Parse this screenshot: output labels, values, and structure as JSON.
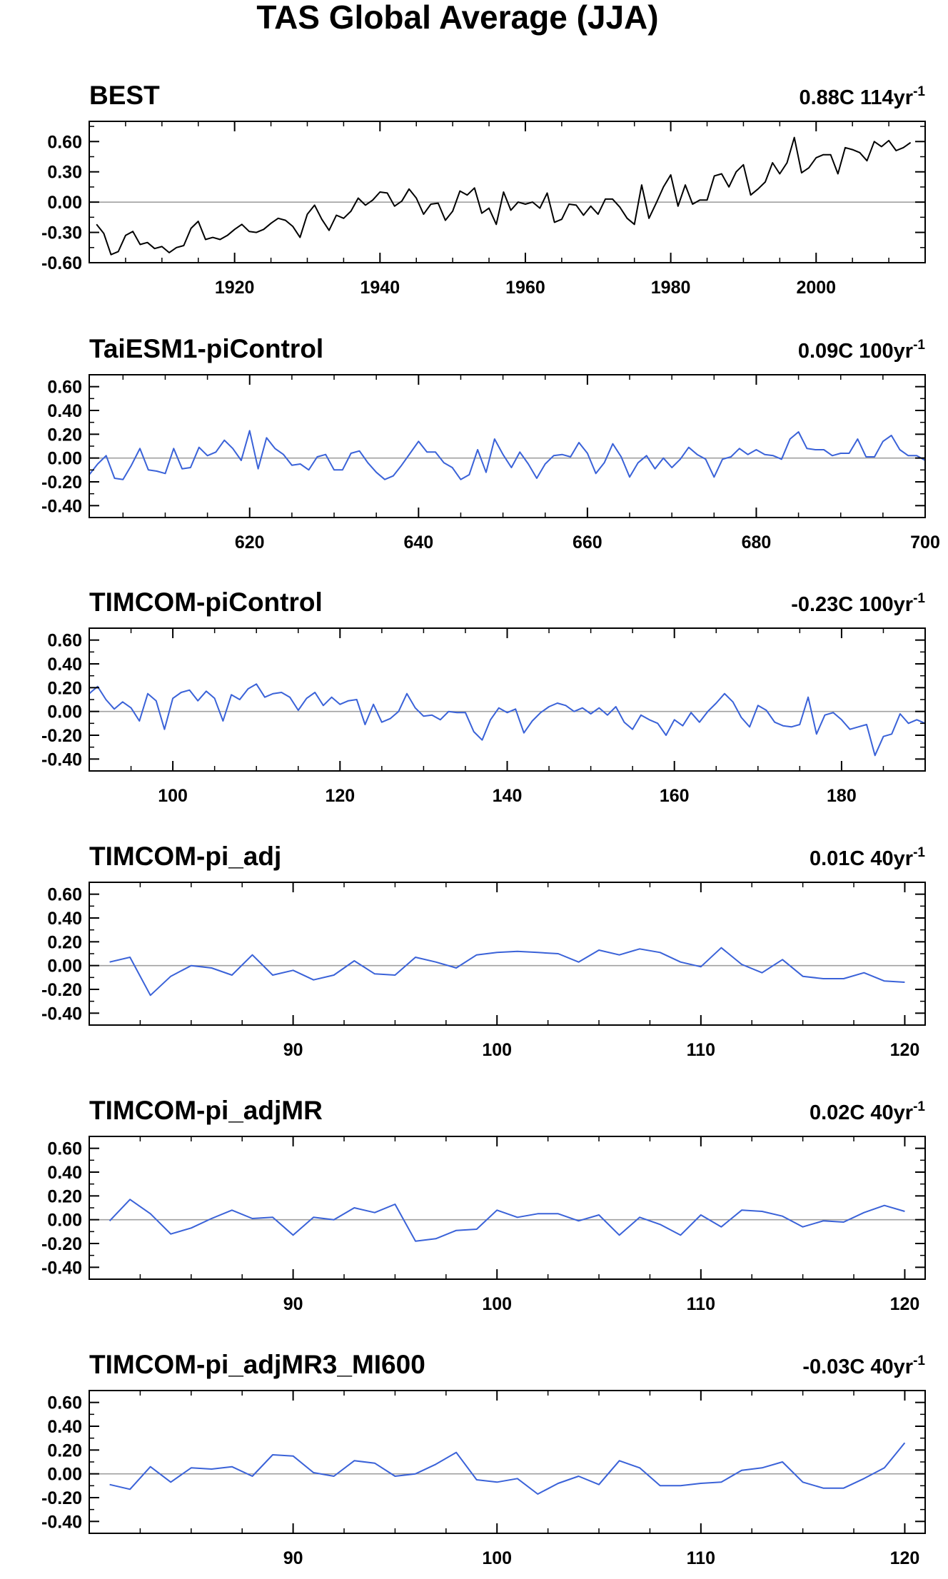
{
  "figure": {
    "title": "TAS Global Average (JJA)"
  },
  "colors": {
    "observed": "#000000",
    "model": "#3a62d8",
    "zero_line": "#a0a0a0",
    "frame": "#000000"
  },
  "chart_data": [
    {
      "type": "line",
      "title": "BEST",
      "trend_value": "0.88C 114yr",
      "trend_unit_exp": "-1",
      "series_color": "observed",
      "xlim": [
        1900,
        2015
      ],
      "ylim": [
        -0.6,
        0.8
      ],
      "yticks": [
        -0.6,
        -0.3,
        0.0,
        0.3,
        0.6
      ],
      "ytick_labels": [
        "-0.60",
        "-0.30",
        "0.00",
        "0.30",
        "0.60"
      ],
      "xticks": [
        1920,
        1940,
        1960,
        1980,
        2000
      ],
      "xtick_labels": [
        "1920",
        "1940",
        "1960",
        "1980",
        "2000"
      ],
      "x_start": 1901,
      "x_step": 1,
      "y": [
        -0.22,
        -0.31,
        -0.52,
        -0.49,
        -0.33,
        -0.29,
        -0.42,
        -0.4,
        -0.46,
        -0.44,
        -0.5,
        -0.45,
        -0.43,
        -0.26,
        -0.19,
        -0.37,
        -0.35,
        -0.37,
        -0.33,
        -0.27,
        -0.22,
        -0.29,
        -0.3,
        -0.27,
        -0.21,
        -0.16,
        -0.18,
        -0.24,
        -0.35,
        -0.12,
        -0.03,
        -0.17,
        -0.28,
        -0.13,
        -0.16,
        -0.09,
        0.04,
        -0.03,
        0.02,
        0.1,
        0.09,
        -0.04,
        0.01,
        0.13,
        0.04,
        -0.12,
        -0.02,
        -0.01,
        -0.18,
        -0.09,
        0.11,
        0.07,
        0.14,
        -0.11,
        -0.06,
        -0.22,
        0.1,
        -0.08,
        0.0,
        -0.02,
        0.0,
        -0.06,
        0.09,
        -0.2,
        -0.17,
        -0.02,
        -0.03,
        -0.13,
        -0.04,
        -0.12,
        0.03,
        0.03,
        -0.05,
        -0.16,
        -0.22,
        0.17,
        -0.16,
        -0.01,
        0.15,
        0.27,
        -0.04,
        0.17,
        -0.02,
        0.02,
        0.02,
        0.26,
        0.28,
        0.15,
        0.3,
        0.37,
        0.07,
        0.13,
        0.2,
        0.39,
        0.28,
        0.39,
        0.64,
        0.29,
        0.34,
        0.44,
        0.47,
        0.47,
        0.28,
        0.54,
        0.52,
        0.49,
        0.41,
        0.6,
        0.55,
        0.61,
        0.51,
        0.54,
        0.59
      ]
    },
    {
      "type": "line",
      "title": "TaiESM1-piControl",
      "trend_value": "0.09C 100yr",
      "trend_unit_exp": "-1",
      "series_color": "model",
      "xlim": [
        601,
        700
      ],
      "ylim": [
        -0.5,
        0.7
      ],
      "yticks": [
        -0.4,
        -0.2,
        0.0,
        0.2,
        0.4,
        0.6
      ],
      "ytick_labels": [
        "-0.40",
        "-0.20",
        "0.00",
        "0.20",
        "0.40",
        "0.60"
      ],
      "xticks": [
        620,
        640,
        660,
        680,
        700
      ],
      "xtick_labels": [
        "620",
        "640",
        "660",
        "680",
        "700"
      ],
      "x_start": 601,
      "x_step": 1,
      "y": [
        -0.14,
        -0.05,
        0.02,
        -0.17,
        -0.18,
        -0.06,
        0.08,
        -0.1,
        -0.11,
        -0.13,
        0.08,
        -0.09,
        -0.08,
        0.09,
        0.02,
        0.05,
        0.15,
        0.08,
        -0.02,
        0.23,
        -0.09,
        0.17,
        0.08,
        0.03,
        -0.06,
        -0.05,
        -0.1,
        0.01,
        0.03,
        -0.1,
        -0.1,
        0.04,
        0.06,
        -0.04,
        -0.12,
        -0.18,
        -0.15,
        -0.06,
        0.04,
        0.14,
        0.05,
        0.05,
        -0.04,
        -0.08,
        -0.18,
        -0.14,
        0.07,
        -0.12,
        0.16,
        0.03,
        -0.08,
        0.05,
        -0.05,
        -0.17,
        -0.05,
        0.02,
        0.03,
        0.01,
        0.13,
        0.04,
        -0.13,
        -0.04,
        0.12,
        0.01,
        -0.16,
        -0.04,
        0.02,
        -0.09,
        0.0,
        -0.08,
        -0.01,
        0.09,
        0.03,
        -0.01,
        -0.16,
        -0.01,
        0.01,
        0.08,
        0.03,
        0.07,
        0.03,
        0.02,
        -0.01,
        0.16,
        0.22,
        0.08,
        0.07,
        0.07,
        0.02,
        0.04,
        0.04,
        0.16,
        0.01,
        0.01,
        0.14,
        0.19,
        0.07,
        0.02,
        0.02,
        -0.02
      ]
    },
    {
      "type": "line",
      "title": "TIMCOM-piControl",
      "trend_value": "-0.23C 100yr",
      "trend_unit_exp": "-1",
      "series_color": "model",
      "xlim": [
        90,
        190
      ],
      "ylim": [
        -0.5,
        0.7
      ],
      "yticks": [
        -0.4,
        -0.2,
        0.0,
        0.2,
        0.4,
        0.6
      ],
      "ytick_labels": [
        "-0.40",
        "-0.20",
        "0.00",
        "0.20",
        "0.40",
        "0.60"
      ],
      "xticks": [
        100,
        120,
        140,
        160,
        180
      ],
      "xtick_labels": [
        "100",
        "120",
        "140",
        "160",
        "180"
      ],
      "x_start": 90,
      "x_step": 1,
      "y": [
        0.15,
        0.21,
        0.1,
        0.02,
        0.08,
        0.03,
        -0.08,
        0.15,
        0.09,
        -0.15,
        0.11,
        0.16,
        0.18,
        0.09,
        0.17,
        0.11,
        -0.08,
        0.14,
        0.1,
        0.19,
        0.23,
        0.12,
        0.15,
        0.16,
        0.12,
        0.01,
        0.11,
        0.16,
        0.05,
        0.12,
        0.06,
        0.09,
        0.1,
        -0.11,
        0.06,
        -0.09,
        -0.06,
        0.0,
        0.15,
        0.03,
        -0.04,
        -0.03,
        -0.07,
        0.0,
        -0.01,
        -0.01,
        -0.17,
        -0.24,
        -0.07,
        0.03,
        -0.01,
        0.02,
        -0.18,
        -0.08,
        -0.01,
        0.04,
        0.07,
        0.05,
        0.0,
        0.03,
        -0.02,
        0.03,
        -0.03,
        0.04,
        -0.09,
        -0.15,
        -0.03,
        -0.07,
        -0.1,
        -0.2,
        -0.07,
        -0.12,
        -0.01,
        -0.09,
        0.0,
        0.07,
        0.15,
        0.08,
        -0.05,
        -0.13,
        0.05,
        0.01,
        -0.09,
        -0.12,
        -0.13,
        -0.11,
        0.12,
        -0.19,
        -0.03,
        -0.01,
        -0.07,
        -0.15,
        -0.13,
        -0.11,
        -0.37,
        -0.21,
        -0.19,
        -0.02,
        -0.1,
        -0.07,
        -0.1
      ]
    },
    {
      "type": "line",
      "title": "TIMCOM-pi_adj",
      "trend_value": "0.01C 40yr",
      "trend_unit_exp": "-1",
      "series_color": "model",
      "xlim": [
        80,
        121
      ],
      "ylim": [
        -0.5,
        0.7
      ],
      "yticks": [
        -0.4,
        -0.2,
        0.0,
        0.2,
        0.4,
        0.6
      ],
      "ytick_labels": [
        "-0.40",
        "-0.20",
        "0.00",
        "0.20",
        "0.40",
        "0.60"
      ],
      "xticks": [
        90,
        100,
        110,
        120
      ],
      "xtick_labels": [
        "90",
        "100",
        "110",
        "120"
      ],
      "x_start": 81,
      "x_step": 1,
      "y": [
        0.03,
        0.07,
        -0.25,
        -0.09,
        0.0,
        -0.02,
        -0.08,
        0.09,
        -0.08,
        -0.04,
        -0.12,
        -0.08,
        0.04,
        -0.07,
        -0.08,
        0.07,
        0.03,
        -0.02,
        0.09,
        0.11,
        0.12,
        0.11,
        0.1,
        0.03,
        0.13,
        0.09,
        0.14,
        0.11,
        0.03,
        -0.01,
        0.15,
        0.01,
        -0.06,
        0.05,
        -0.09,
        -0.11,
        -0.11,
        -0.06,
        -0.13,
        -0.14
      ]
    },
    {
      "type": "line",
      "title": "TIMCOM-pi_adjMR",
      "trend_value": "0.02C 40yr",
      "trend_unit_exp": "-1",
      "series_color": "model",
      "xlim": [
        80,
        121
      ],
      "ylim": [
        -0.5,
        0.7
      ],
      "yticks": [
        -0.4,
        -0.2,
        0.0,
        0.2,
        0.4,
        0.6
      ],
      "ytick_labels": [
        "-0.40",
        "-0.20",
        "0.00",
        "0.20",
        "0.40",
        "0.60"
      ],
      "xticks": [
        90,
        100,
        110,
        120
      ],
      "xtick_labels": [
        "90",
        "100",
        "110",
        "120"
      ],
      "x_start": 81,
      "x_step": 1,
      "y": [
        -0.01,
        0.17,
        0.05,
        -0.12,
        -0.07,
        0.01,
        0.08,
        0.01,
        0.02,
        -0.13,
        0.02,
        0.0,
        0.1,
        0.06,
        0.13,
        -0.18,
        -0.16,
        -0.09,
        -0.08,
        0.08,
        0.02,
        0.05,
        0.05,
        -0.01,
        0.04,
        -0.13,
        0.02,
        -0.04,
        -0.13,
        0.04,
        -0.06,
        0.08,
        0.07,
        0.03,
        -0.06,
        -0.01,
        -0.02,
        0.06,
        0.12,
        0.07
      ]
    },
    {
      "type": "line",
      "title": "TIMCOM-pi_adjMR3_MI600",
      "trend_value": "-0.03C 40yr",
      "trend_unit_exp": "-1",
      "series_color": "model",
      "xlim": [
        80,
        121
      ],
      "ylim": [
        -0.5,
        0.7
      ],
      "yticks": [
        -0.4,
        -0.2,
        0.0,
        0.2,
        0.4,
        0.6
      ],
      "ytick_labels": [
        "-0.40",
        "-0.20",
        "0.00",
        "0.20",
        "0.40",
        "0.60"
      ],
      "xticks": [
        90,
        100,
        110,
        120
      ],
      "xtick_labels": [
        "90",
        "100",
        "110",
        "120"
      ],
      "x_start": 81,
      "x_step": 1,
      "y": [
        -0.09,
        -0.13,
        0.06,
        -0.07,
        0.05,
        0.04,
        0.06,
        -0.02,
        0.16,
        0.15,
        0.01,
        -0.02,
        0.11,
        0.09,
        -0.02,
        0.0,
        0.08,
        0.18,
        -0.05,
        -0.07,
        -0.04,
        -0.17,
        -0.08,
        -0.02,
        -0.09,
        0.11,
        0.05,
        -0.1,
        -0.1,
        -0.08,
        -0.07,
        0.03,
        0.05,
        0.1,
        -0.07,
        -0.12,
        -0.12,
        -0.04,
        0.05,
        0.26
      ]
    }
  ]
}
